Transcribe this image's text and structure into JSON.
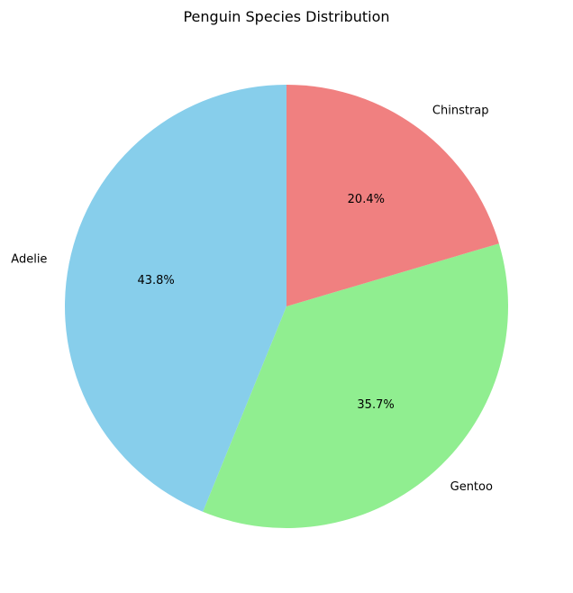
{
  "chart_data": {
    "type": "pie",
    "title": "Penguin Species Distribution",
    "start_angle_deg": 90,
    "direction": "counterclockwise",
    "slices": [
      {
        "label": "Adelie",
        "percent": 43.8,
        "pct_label": "43.8%",
        "color": "#87CEEB"
      },
      {
        "label": "Gentoo",
        "percent": 35.7,
        "pct_label": "35.7%",
        "color": "#90EE90"
      },
      {
        "label": "Chinstrap",
        "percent": 20.4,
        "pct_label": "20.4%",
        "color": "#F08080"
      }
    ]
  }
}
